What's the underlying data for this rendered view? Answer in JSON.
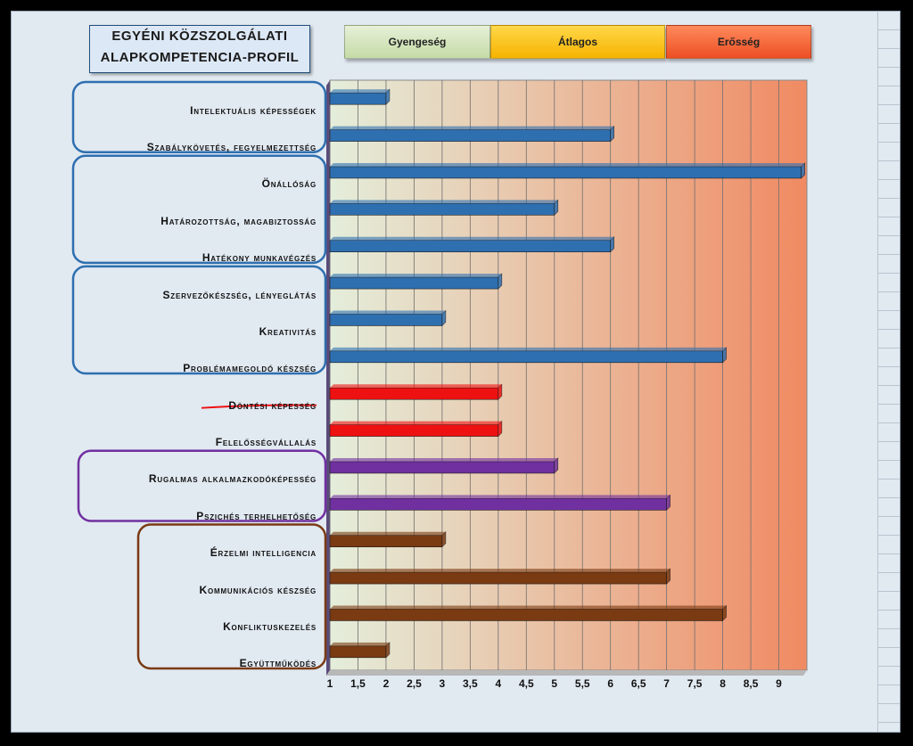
{
  "title_lines": [
    "EGYÉNI KÖZSZOLGÁLATI",
    "ALAPKOMPETENCIA-PROFIL"
  ],
  "zones": [
    {
      "label": "Gyengeség",
      "from": 1,
      "to": 3.5,
      "color_top": "#e6f0d8",
      "color_bottom": "#c5dba6"
    },
    {
      "label": "Átlagos",
      "from": 3.5,
      "to": 6.5,
      "color_top": "#ffd84a",
      "color_bottom": "#f6b400"
    },
    {
      "label": "Erősség",
      "from": 6.5,
      "to": 9.5,
      "color_top": "#ff8a5c",
      "color_bottom": "#ec4f23"
    }
  ],
  "colors": {
    "blue": "#2e6fb0",
    "red": "#ee1111",
    "purple": "#7030a0",
    "brown": "#7a3a12"
  },
  "chart_data": {
    "type": "bar",
    "orientation": "horizontal",
    "categories": [
      "Intelektuális képességek",
      "Szabálykövetés, fegyelmezettség",
      "Önállóság",
      "Határozottság, magabiztosság",
      "Hatékony munkavégzés",
      "Szervezőkészség, lényeglátás",
      "Kreativitás",
      "Problémamegoldó készség",
      "Döntési képesség",
      "Felelősségvállalás",
      "Rugalmas alkalmazkodóképesség",
      "Pszichés terhelhetőség",
      "Érzelmi intelligencia",
      "Kommunikációs készség",
      "Konfliktuskezelés",
      "Együttműködés"
    ],
    "values": [
      2,
      6,
      9.4,
      5,
      6,
      4,
      3,
      8,
      4,
      4,
      5,
      7,
      3,
      7,
      8,
      2
    ],
    "bar_colors": [
      "blue",
      "blue",
      "blue",
      "blue",
      "blue",
      "blue",
      "blue",
      "blue",
      "red",
      "red",
      "purple",
      "purple",
      "brown",
      "brown",
      "brown",
      "brown"
    ],
    "x_ticks": [
      "1",
      "1,5",
      "2",
      "2,5",
      "3",
      "3,5",
      "4",
      "4,5",
      "5",
      "5,5",
      "6",
      "6,5",
      "7",
      "7,5",
      "8",
      "8,5",
      "9"
    ],
    "xlim": [
      1,
      9.5
    ],
    "groups": [
      {
        "from": 0,
        "to": 1,
        "color": "blue"
      },
      {
        "from": 2,
        "to": 4,
        "color": "blue"
      },
      {
        "from": 5,
        "to": 7,
        "color": "blue"
      },
      {
        "from": 10,
        "to": 11,
        "color": "purple"
      },
      {
        "from": 12,
        "to": 15,
        "color": "brown"
      }
    ],
    "underlined_category": 8
  }
}
